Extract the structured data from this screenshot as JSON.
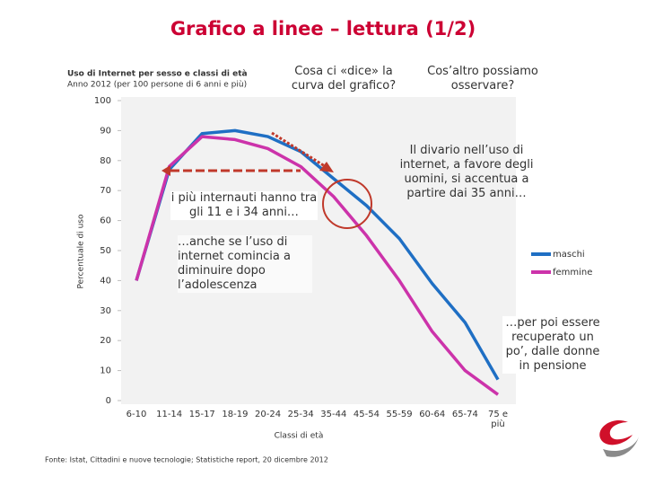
{
  "chart_data": {
    "type": "line",
    "page_title": "Grafico a linee – lettura (1/2)",
    "title": "Uso di Internet per sesso e classi di età",
    "subtitle": "Anno 2012 (per 100 persone di 6 anni e più)",
    "y_label": "Percentuale di uso",
    "x_label": "Classi di età",
    "source": "Fonte: Istat, Cittadini e nuove tecnologie; Statistiche report, 20 dicembre 2012",
    "categories": [
      "6-10",
      "11-14",
      "15-17",
      "18-19",
      "20-24",
      "25-34",
      "35-44",
      "45-54",
      "55-59",
      "60-64",
      "65-74",
      "75 e più"
    ],
    "series": [
      {
        "name": "maschi",
        "color": "#1f6fc4",
        "values": [
          40,
          77,
          89,
          90,
          88,
          83,
          74,
          65,
          54,
          39,
          26,
          7
        ]
      },
      {
        "name": "femmine",
        "color": "#cc33aa",
        "values": [
          40,
          78,
          88,
          87,
          84,
          78,
          68,
          55,
          40,
          23,
          10,
          2
        ]
      }
    ],
    "ylim": [
      0,
      100
    ],
    "yticks": [
      0,
      10,
      20,
      30,
      40,
      50,
      60,
      70,
      80,
      90,
      100
    ],
    "grid": false,
    "legend": "right",
    "annotations": [
      "Cosa ci «dice» la curva del grafico?",
      "Cos’altro possiamo osservare?",
      "Il divario nell’uso di internet, a favore degli uomini, si accentua a partire dai 35 anni…",
      "i più internauti hanno tra gli 11 e i 34 anni…",
      "…anche se l’uso di internet comincia a diminuire dopo l’adolescenza",
      "…per poi essere recuperato un po’, dalle donne in pensione"
    ]
  }
}
